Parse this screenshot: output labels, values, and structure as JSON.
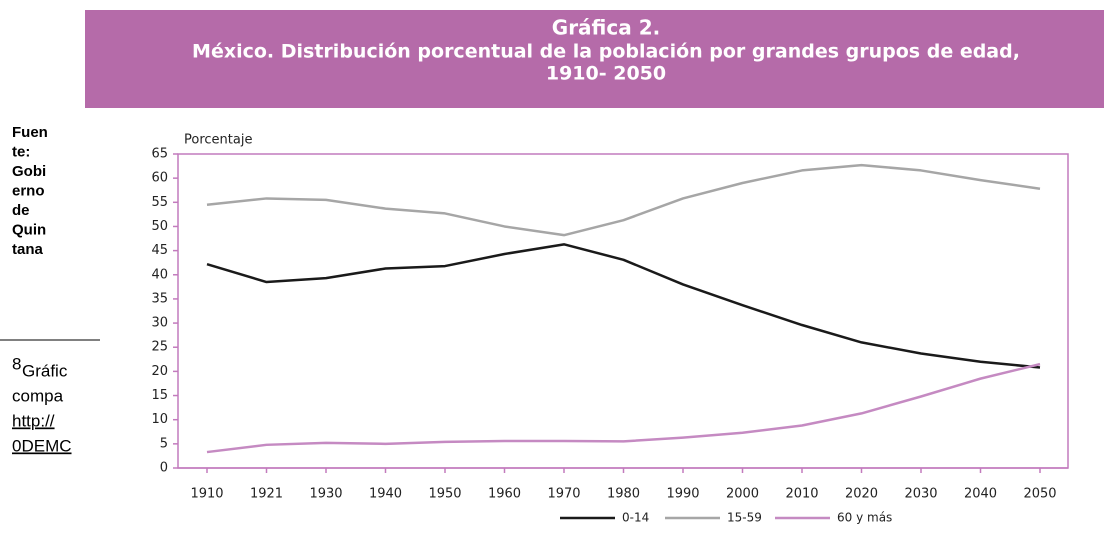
{
  "sidebar_lines": [
    "Fuen",
    "te:",
    "Gobi",
    "erno",
    "de",
    "Quin",
    "tana"
  ],
  "footnote": {
    "marker": "8",
    "lines": [
      "Gráfic",
      "compa",
      "http://",
      "0DEMC"
    ]
  },
  "chart_data": {
    "type": "line",
    "title": "Gráfica 2.",
    "subtitle": [
      "México. Distribución porcentual de la población por grandes grupos de edad,",
      "1910- 2050"
    ],
    "y_label": "Porcentaje",
    "categories": [
      "1910",
      "1921",
      "1930",
      "1940",
      "1950",
      "1960",
      "1970",
      "1980",
      "1990",
      "2000",
      "2010",
      "2020",
      "2030",
      "2040",
      "2050"
    ],
    "series": [
      {
        "name": "0-14",
        "color": "#1a1a1a",
        "values": [
          42.2,
          38.5,
          39.3,
          41.3,
          41.8,
          44.3,
          46.3,
          43.1,
          38,
          33.7,
          29.6,
          26,
          23.7,
          22,
          20.8
        ]
      },
      {
        "name": "15-59",
        "color": "#a6a6a6",
        "values": [
          54.5,
          55.8,
          55.5,
          53.7,
          52.7,
          50,
          48.2,
          51.3,
          55.8,
          59,
          61.6,
          62.7,
          61.6,
          59.6,
          57.8
        ]
      },
      {
        "name": "60 y más",
        "color": "#c58ac2",
        "values": [
          3.3,
          4.8,
          5.2,
          5,
          5.4,
          5.6,
          5.6,
          5.5,
          6.3,
          7.3,
          8.8,
          11.3,
          14.8,
          18.5,
          21.5
        ]
      }
    ],
    "ylim": [
      0,
      65
    ],
    "yticks": [
      0,
      5,
      10,
      15,
      20,
      25,
      30,
      35,
      40,
      45,
      50,
      55,
      60,
      65
    ],
    "grid": false,
    "legend": "bottom"
  }
}
